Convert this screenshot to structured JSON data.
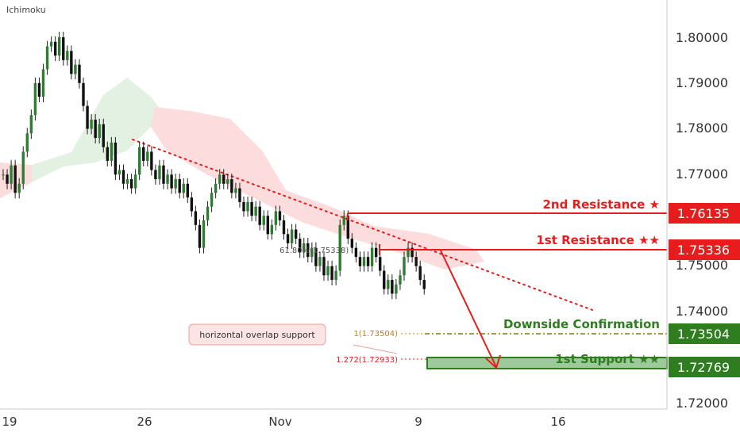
{
  "chart_data": {
    "type": "candlestick",
    "indicator": "Ichimoku",
    "y_ticks": [
      "1.80000",
      "1.79000",
      "1.78000",
      "1.77000",
      "1.75000",
      "1.74000",
      "1.72000"
    ],
    "x_ticks": [
      "19",
      "26",
      "Nov",
      "9",
      "16"
    ],
    "levels": [
      {
        "name": "2nd Resistance ★",
        "value": 1.76135,
        "badge": "1.76135",
        "color": "#e81c1c",
        "style": "solid"
      },
      {
        "name": "1st Resistance ★★",
        "value": 1.75336,
        "badge": "1.75336",
        "color": "#e81c1c",
        "style": "solid"
      },
      {
        "name": "Downside Confirmation",
        "value": 1.73504,
        "badge": "1.73504",
        "color": "#2e7d1e",
        "style": "dashdot"
      },
      {
        "name": "1st Support ★★",
        "value": 1.72769,
        "badge": "1.72769",
        "color": "#2e7d1e",
        "style": "zone"
      }
    ],
    "fib_labels": [
      {
        "text": "61.80%(1.75338)",
        "color": "#555555"
      },
      {
        "text": "1(1.73504)",
        "color": "#b8860b"
      },
      {
        "text": "1.272(1.72933)",
        "color": "#e81c1c"
      }
    ],
    "annotations": [
      "horizontal overlap support"
    ],
    "colors": {
      "up": "#2e7d32",
      "down": "#111111",
      "resistance": "#e81c1c",
      "support": "#2e7d1e",
      "cloud_bear": "#fcdcdc",
      "cloud_bull": "#e2f1e2"
    }
  }
}
